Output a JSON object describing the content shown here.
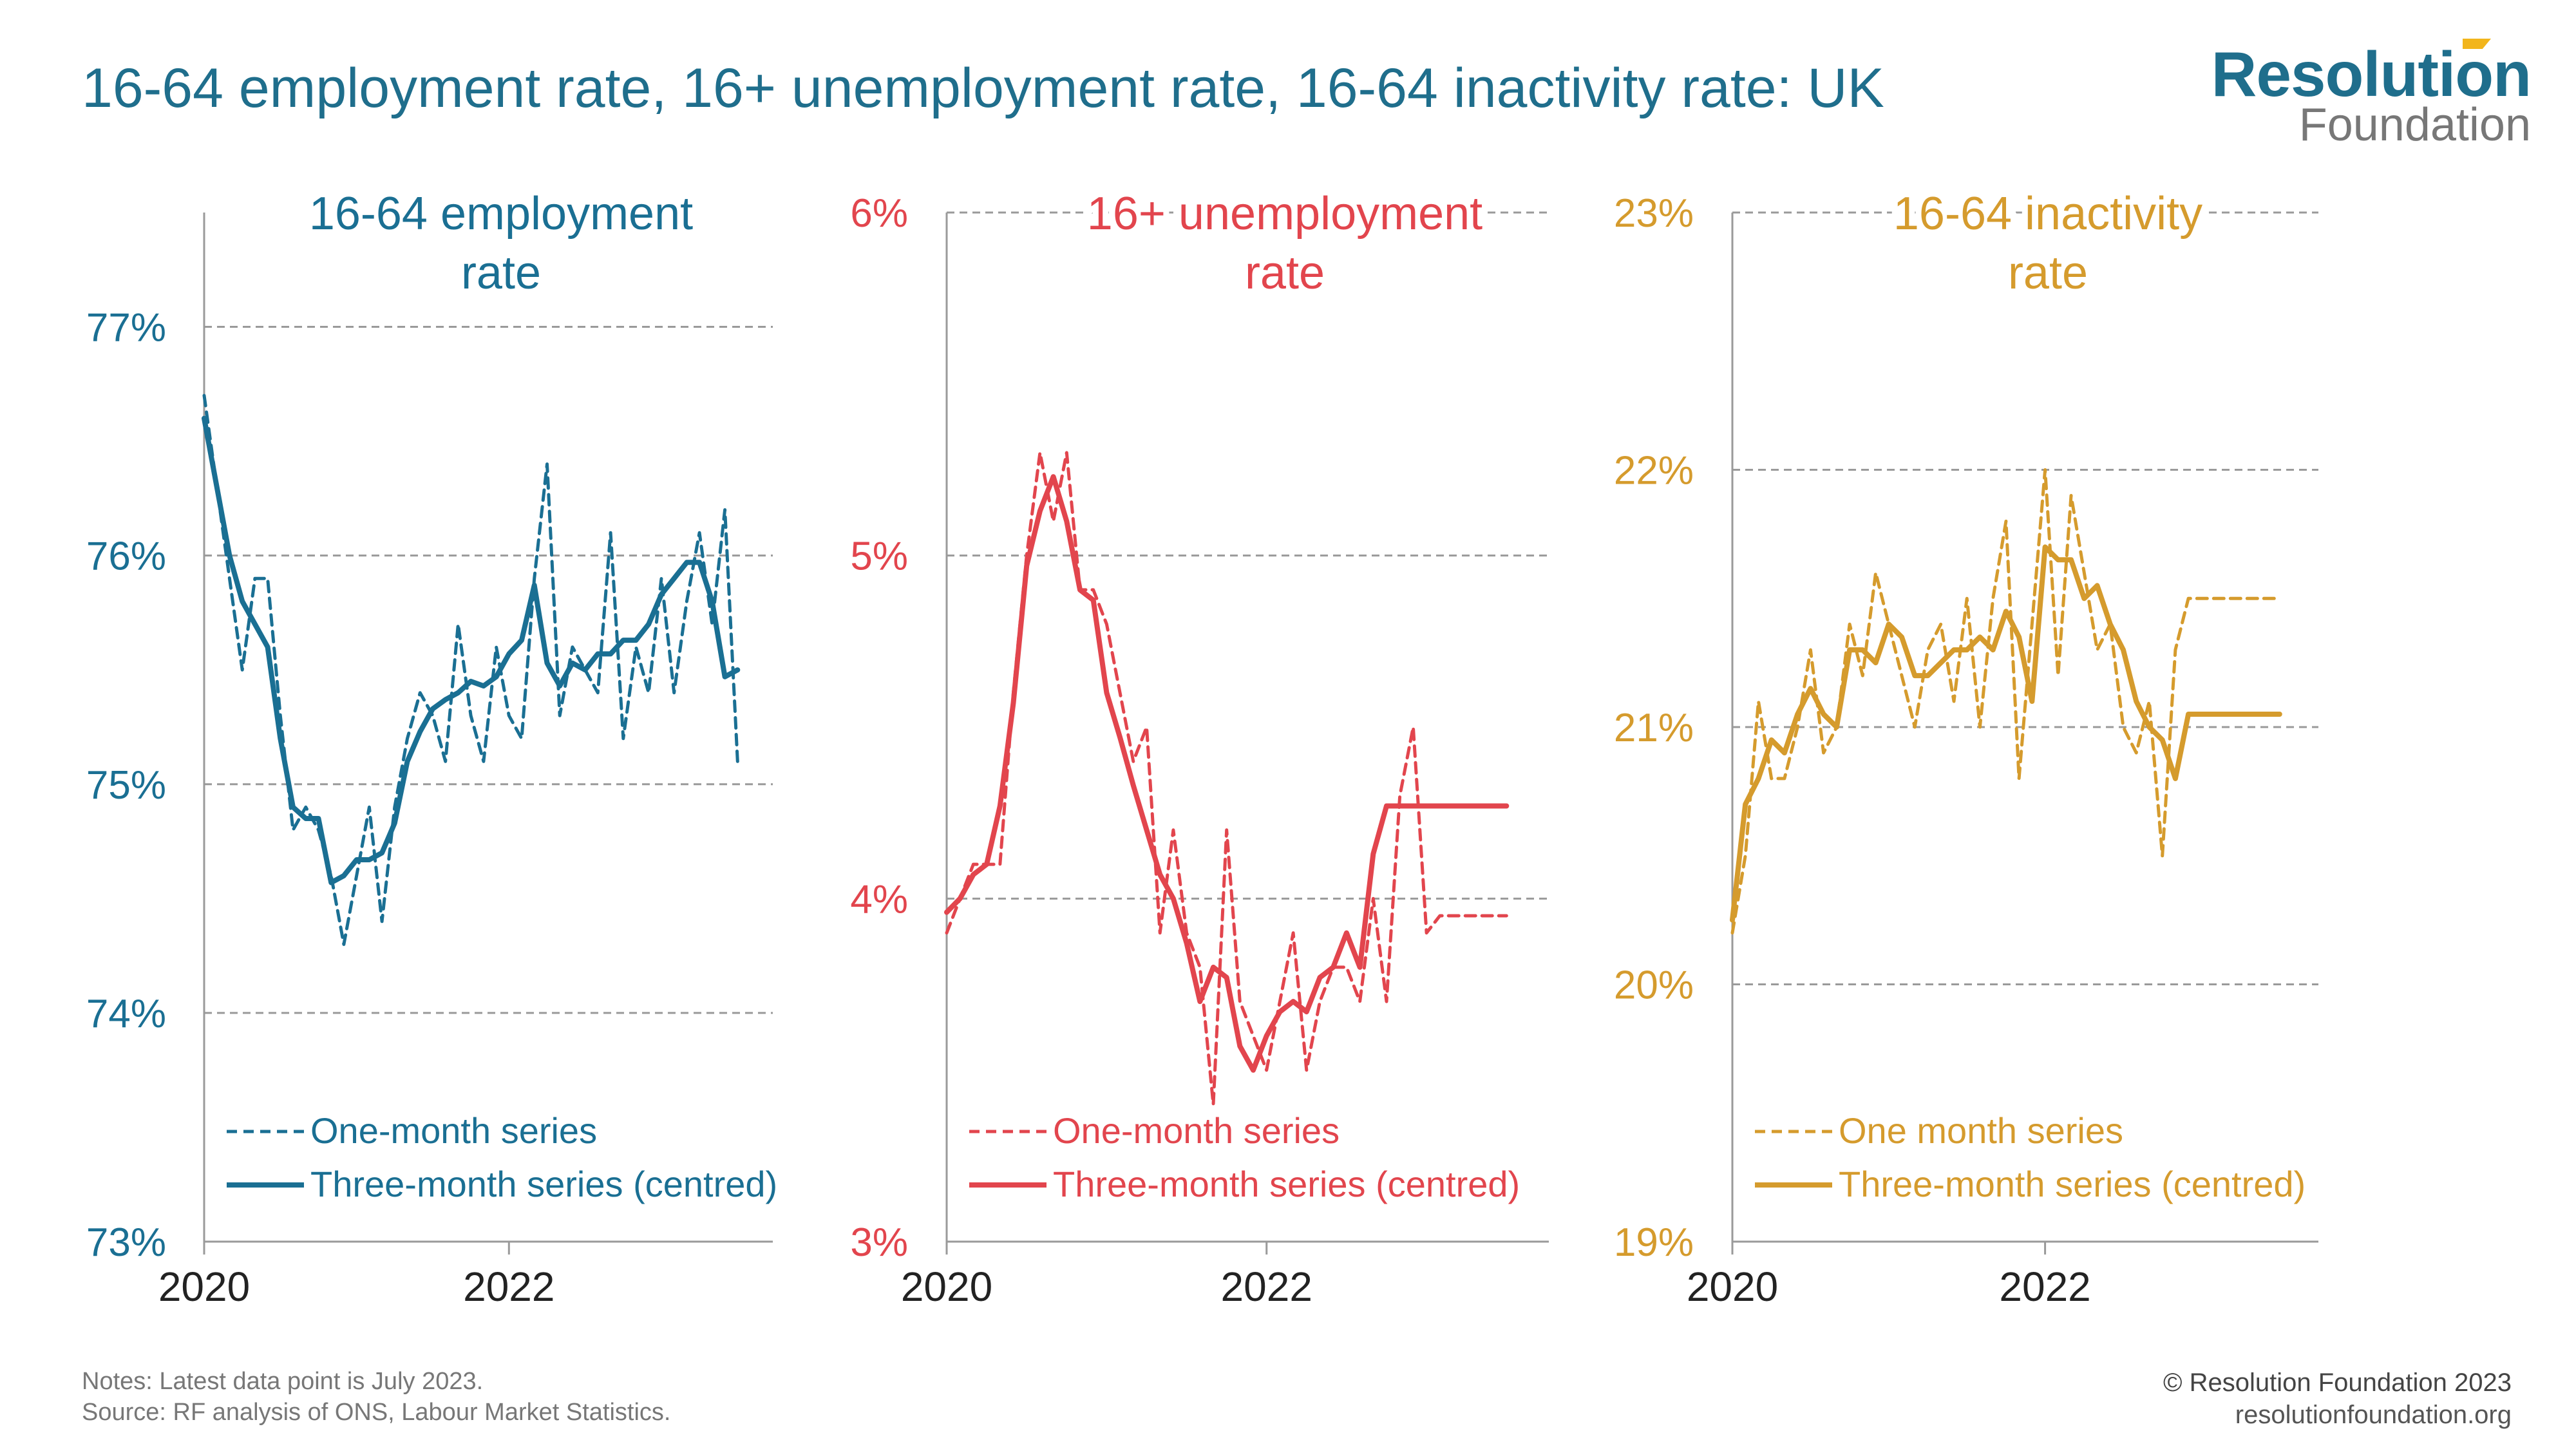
{
  "title": "16-64 employment rate, 16+ unemployment rate, 16-64 inactivity rate: UK",
  "logo": {
    "line1": "Resolution",
    "line2": "Foundation"
  },
  "footer": {
    "notes": "Notes: Latest data point is July 2023.",
    "source": "Source: RF analysis of ONS, Labour Market Statistics.",
    "copyright": "© Resolution Foundation 2023",
    "url": "resolutionfoundation.org"
  },
  "colors": {
    "employment": "#1a6f93",
    "unemployment": "#e2454d",
    "inactivity": "#d59b2d",
    "grid": "#9a9a9a",
    "axis": "#9a9a9a"
  },
  "chart_data": [
    {
      "type": "line",
      "title": "16-64 employment rate",
      "title_lines": [
        "16-64 employment",
        "rate"
      ],
      "x_ticks": [
        "2020",
        "2022"
      ],
      "x_range": [
        "2020-01",
        "2023-08"
      ],
      "ylim": [
        73,
        77.5
      ],
      "y_ticks": [
        73,
        74,
        75,
        76,
        77
      ],
      "y_tick_labels": [
        "73%",
        "74%",
        "75%",
        "76%",
        "77%"
      ],
      "legend_position": "bottom-left",
      "dates": [
        "2020-01",
        "2020-02",
        "2020-03",
        "2020-04",
        "2020-05",
        "2020-06",
        "2020-07",
        "2020-08",
        "2020-09",
        "2020-10",
        "2020-11",
        "2020-12",
        "2021-01",
        "2021-02",
        "2021-03",
        "2021-04",
        "2021-05",
        "2021-06",
        "2021-07",
        "2021-08",
        "2021-09",
        "2021-10",
        "2021-11",
        "2021-12",
        "2022-01",
        "2022-02",
        "2022-03",
        "2022-04",
        "2022-05",
        "2022-06",
        "2022-07",
        "2022-08",
        "2022-09",
        "2022-10",
        "2022-11",
        "2022-12",
        "2023-01",
        "2023-02",
        "2023-03",
        "2023-04",
        "2023-05",
        "2023-06",
        "2023-07"
      ],
      "series": [
        {
          "name": "One-month series",
          "style": "dashed",
          "values": [
            76.7,
            76.3,
            75.9,
            75.5,
            75.9,
            75.9,
            75.3,
            74.8,
            74.9,
            74.8,
            74.6,
            74.3,
            74.6,
            74.9,
            74.4,
            74.9,
            75.2,
            75.4,
            75.3,
            75.1,
            75.7,
            75.3,
            75.1,
            75.6,
            75.3,
            75.2,
            75.9,
            76.4,
            75.3,
            75.6,
            75.5,
            75.4,
            76.1,
            75.2,
            75.6,
            75.4,
            75.9,
            75.4,
            75.8,
            76.1,
            75.7,
            76.2,
            75.1
          ]
        },
        {
          "name": "Three-month series (centred)",
          "style": "solid",
          "values": [
            76.6,
            76.3,
            76.0,
            75.8,
            75.7,
            75.6,
            75.2,
            74.9,
            74.85,
            74.85,
            74.57,
            74.6,
            74.67,
            74.67,
            74.7,
            74.83,
            75.1,
            75.23,
            75.33,
            75.37,
            75.4,
            75.45,
            75.43,
            75.47,
            75.57,
            75.63,
            75.87,
            75.53,
            75.43,
            75.53,
            75.5,
            75.57,
            75.57,
            75.63,
            75.63,
            75.7,
            75.83,
            75.9,
            75.97,
            75.97,
            75.8,
            75.47,
            75.5
          ]
        }
      ]
    },
    {
      "type": "line",
      "title": "16+ unemployment rate",
      "title_lines": [
        "16+ unemployment",
        "rate"
      ],
      "x_ticks": [
        "2020",
        "2022"
      ],
      "x_range": [
        "2020-01",
        "2023-08"
      ],
      "ylim": [
        3,
        6
      ],
      "y_ticks": [
        3,
        4,
        5,
        6
      ],
      "y_tick_labels": [
        "3%",
        "4%",
        "5%",
        "6%"
      ],
      "legend_position": "bottom-left",
      "dates": [
        "2020-01",
        "2020-02",
        "2020-03",
        "2020-04",
        "2020-05",
        "2020-06",
        "2020-07",
        "2020-08",
        "2020-09",
        "2020-10",
        "2020-11",
        "2020-12",
        "2021-01",
        "2021-02",
        "2021-03",
        "2021-04",
        "2021-05",
        "2021-06",
        "2021-07",
        "2021-08",
        "2021-09",
        "2021-10",
        "2021-11",
        "2021-12",
        "2022-01",
        "2022-02",
        "2022-03",
        "2022-04",
        "2022-05",
        "2022-06",
        "2022-07",
        "2022-08",
        "2022-09",
        "2022-10",
        "2022-11",
        "2022-12",
        "2023-01",
        "2023-02",
        "2023-03",
        "2023-04",
        "2023-05",
        "2023-06",
        "2023-07"
      ],
      "series": [
        {
          "name": "One-month series",
          "style": "dashed",
          "values": [
            3.9,
            4.0,
            4.1,
            4.1,
            4.1,
            4.6,
            5.0,
            5.3,
            5.1,
            5.3,
            4.9,
            4.9,
            4.8,
            4.6,
            4.4,
            4.5,
            3.9,
            4.2,
            3.9,
            3.8,
            3.4,
            4.2,
            3.7,
            3.6,
            3.5,
            3.7,
            3.9,
            3.5,
            3.7,
            3.8,
            3.8,
            3.7,
            4.0,
            3.7,
            4.3,
            4.5,
            3.9,
            3.95,
            3.95,
            3.95,
            3.95,
            3.95,
            3.95
          ]
        },
        {
          "name": "Three-month series (centred)",
          "style": "solid",
          "values": [
            3.96,
            4.0,
            4.07,
            4.1,
            4.27,
            4.57,
            4.97,
            5.13,
            5.23,
            5.1,
            4.9,
            4.87,
            4.6,
            4.47,
            4.33,
            4.2,
            4.07,
            4.0,
            3.87,
            3.7,
            3.8,
            3.77,
            3.57,
            3.5,
            3.6,
            3.67,
            3.7,
            3.67,
            3.77,
            3.8,
            3.9,
            3.8,
            4.13,
            4.27,
            4.27,
            4.27,
            4.27,
            4.27,
            4.27,
            4.27,
            4.27,
            4.27,
            4.27
          ]
        }
      ]
    },
    {
      "type": "line",
      "title": "16-64 inactivity rate",
      "title_lines": [
        "16-64 inactivity",
        "rate"
      ],
      "x_ticks": [
        "2020",
        "2022"
      ],
      "x_range": [
        "2020-01",
        "2023-08"
      ],
      "ylim": [
        19,
        23
      ],
      "y_ticks": [
        19,
        20,
        21,
        22,
        23
      ],
      "y_tick_labels": [
        "19%",
        "20%",
        "21%",
        "22%",
        "23%"
      ],
      "legend_position": "bottom-left",
      "dates": [
        "2020-01",
        "2020-02",
        "2020-03",
        "2020-04",
        "2020-05",
        "2020-06",
        "2020-07",
        "2020-08",
        "2020-09",
        "2020-10",
        "2020-11",
        "2020-12",
        "2021-01",
        "2021-02",
        "2021-03",
        "2021-04",
        "2021-05",
        "2021-06",
        "2021-07",
        "2021-08",
        "2021-09",
        "2021-10",
        "2021-11",
        "2021-12",
        "2022-01",
        "2022-02",
        "2022-03",
        "2022-04",
        "2022-05",
        "2022-06",
        "2022-07",
        "2022-08",
        "2022-09",
        "2022-10",
        "2022-11",
        "2022-12",
        "2023-01",
        "2023-02",
        "2023-03",
        "2023-04",
        "2023-05",
        "2023-06",
        "2023-07"
      ],
      "series": [
        {
          "name": "One month series",
          "style": "dashed",
          "values": [
            20.2,
            20.5,
            21.1,
            20.8,
            20.8,
            21.0,
            21.3,
            20.9,
            21.0,
            21.4,
            21.2,
            21.6,
            21.4,
            21.2,
            21.0,
            21.3,
            21.4,
            21.1,
            21.5,
            21.0,
            21.5,
            21.8,
            20.8,
            21.4,
            22.0,
            21.2,
            21.9,
            21.6,
            21.3,
            21.4,
            21.0,
            20.9,
            21.1,
            20.5,
            21.3,
            21.5,
            21.5,
            21.5,
            21.5,
            21.5,
            21.5,
            21.5,
            21.5
          ]
        },
        {
          "name": "Three-month series (centred)",
          "style": "solid",
          "values": [
            20.25,
            20.7,
            20.8,
            20.95,
            20.9,
            21.05,
            21.15,
            21.05,
            21.0,
            21.3,
            21.3,
            21.25,
            21.4,
            21.35,
            21.2,
            21.2,
            21.25,
            21.3,
            21.3,
            21.35,
            21.3,
            21.45,
            21.35,
            21.1,
            21.7,
            21.65,
            21.65,
            21.5,
            21.55,
            21.4,
            21.3,
            21.1,
            21.0,
            20.95,
            20.8,
            21.05,
            21.05,
            21.05,
            21.05,
            21.05,
            21.05,
            21.05,
            21.05
          ]
        }
      ]
    }
  ]
}
